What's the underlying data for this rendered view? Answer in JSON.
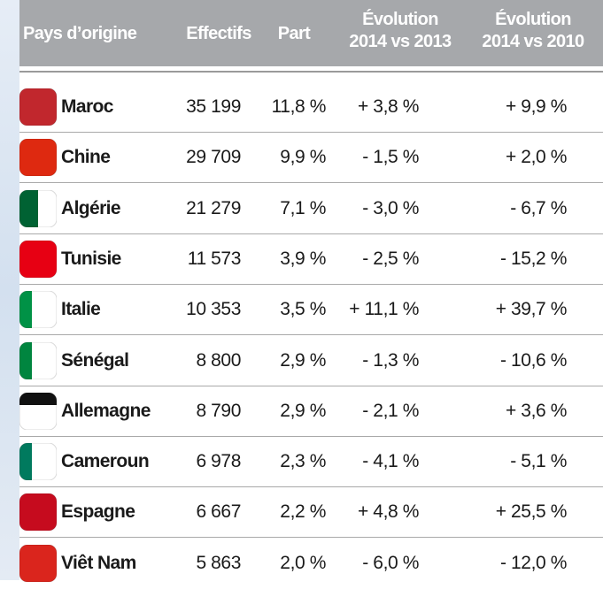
{
  "table": {
    "header": [
      "Pays d’origine",
      "Effectifs",
      "Part",
      "Évolution 2014 vs 2013",
      "Évolution 2014 vs 2010"
    ],
    "rows": [
      [
        "Maroc",
        "35 199",
        "11,8 %",
        "+ 3,8 %",
        "+ 9,9 %"
      ],
      [
        "Chine",
        "29 709",
        "9,9 %",
        "- 1,5 %",
        "+ 2,0 %"
      ],
      [
        "Algérie",
        "21 279",
        "7,1 %",
        "- 3,0 %",
        "- 6,7 %"
      ],
      [
        "Tunisie",
        "11 573",
        "3,9 %",
        "- 2,5 %",
        "- 15,2 %"
      ],
      [
        "Italie",
        "10 353",
        "3,5 %",
        "+ 11,1 %",
        "+ 39,7 %"
      ],
      [
        "Sénégal",
        "8 800",
        "2,9 %",
        "- 1,3 %",
        "- 10,6 %"
      ],
      [
        "Allemagne",
        "8 790",
        "2,9 %",
        "- 2,1 %",
        "+ 3,6 %"
      ],
      [
        "Cameroun",
        "6 978",
        "2,3 %",
        "- 4,1 %",
        "- 5,1 %"
      ],
      [
        "Espagne",
        "6 667",
        "2,2 %",
        "+ 4,8 %",
        "+ 25,5 %"
      ],
      [
        "Viêt Nam",
        "5 863",
        "2,0 %",
        "- 6,0 %",
        "- 12,0 %"
      ]
    ]
  }
}
